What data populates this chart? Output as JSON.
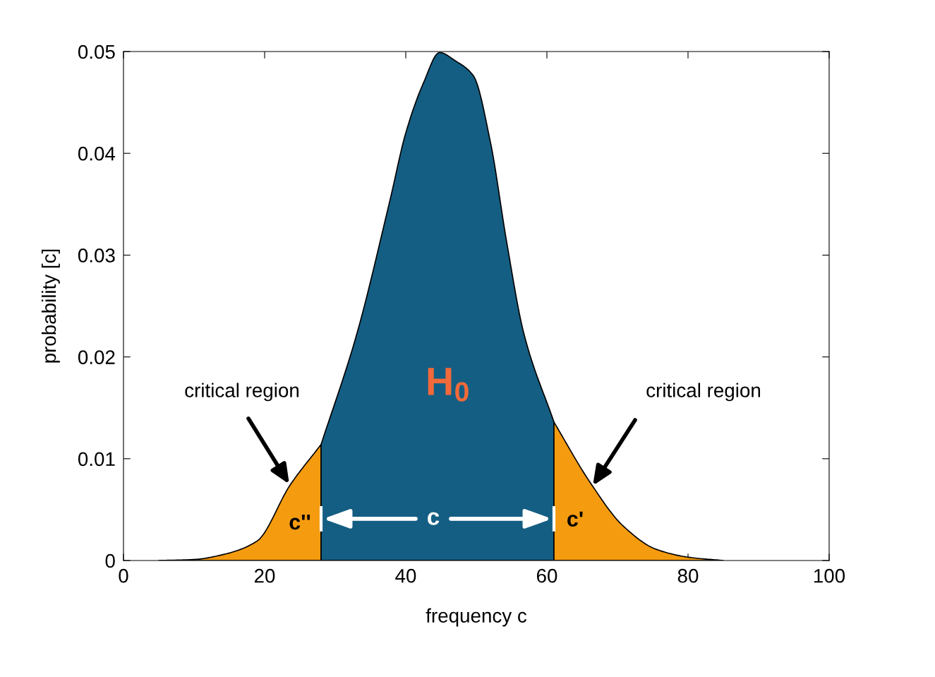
{
  "chart_data": {
    "type": "area",
    "xlabel": "frequency c",
    "ylabel": "probability [c]",
    "xlim": [
      0,
      100
    ],
    "ylim": [
      0,
      0.05
    ],
    "xticks": [
      0,
      20,
      40,
      60,
      80,
      100
    ],
    "yticks": [
      0,
      0.01,
      0.02,
      0.03,
      0.04,
      0.05
    ],
    "grid": false,
    "legend": false,
    "series": [
      {
        "color": "#f49b10",
        "x": [
          5,
          10,
          14.2,
          18.9,
          23.6,
          28
        ],
        "values": [
          0,
          0.0001,
          0.0006,
          0.0019,
          0.0074,
          0.0114
        ]
      },
      {
        "color": "#155e83",
        "x": [
          28,
          33,
          37.8,
          40,
          42.5,
          44.8,
          47,
          49.6,
          52,
          54.3,
          56.7,
          61
        ],
        "values": [
          0.0114,
          0.0221,
          0.0355,
          0.042,
          0.0469,
          0.0499,
          0.0491,
          0.0476,
          0.0411,
          0.0313,
          0.0224,
          0.0136
        ]
      },
      {
        "color": "#f49b10",
        "x": [
          61,
          66.1,
          70.8,
          75.5,
          80.3,
          85
        ],
        "values": [
          0.0136,
          0.0077,
          0.0034,
          0.0011,
          0.0003,
          0
        ]
      }
    ],
    "annotations": [
      "critical region",
      "critical region",
      "H$_{0}$",
      "c''",
      "c'",
      "c"
    ]
  }
}
